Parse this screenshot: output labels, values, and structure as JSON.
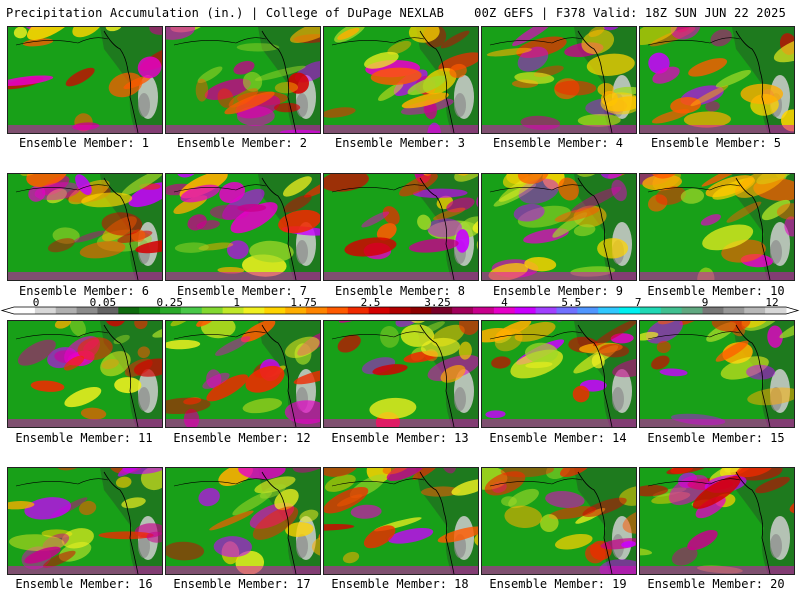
{
  "header": {
    "title": "Precipitation Accumulation (in.) | College of DuPage NEXLAB",
    "run_info": "00Z GEFS | F378 Valid: 18Z SUN JUN 22 2025"
  },
  "members": [
    "Ensemble Member: 1",
    "Ensemble Member: 2",
    "Ensemble Member: 3",
    "Ensemble Member: 4",
    "Ensemble Member: 5",
    "Ensemble Member: 6",
    "Ensemble Member: 7",
    "Ensemble Member: 8",
    "Ensemble Member: 9",
    "Ensemble Member: 10",
    "Ensemble Member: 11",
    "Ensemble Member: 12",
    "Ensemble Member: 13",
    "Ensemble Member: 14",
    "Ensemble Member: 15",
    "Ensemble Member: 16",
    "Ensemble Member: 17",
    "Ensemble Member: 18",
    "Ensemble Member: 19",
    "Ensemble Member: 20"
  ],
  "legend": {
    "labels": [
      "0",
      "0.05",
      "0.25",
      "1",
      "1.75",
      "2.5",
      "3.25",
      "4",
      "5.5",
      "7",
      "9",
      "12"
    ],
    "colors": [
      "#ffffff",
      "#d8d8d8",
      "#b0b0b0",
      "#8c8c8c",
      "#646464",
      "#0e6a0e",
      "#148c14",
      "#2aaa2a",
      "#48c848",
      "#82d830",
      "#c0e828",
      "#f0f020",
      "#ffd400",
      "#ffae00",
      "#ff8400",
      "#ff5a00",
      "#f02a00",
      "#d40000",
      "#b00000",
      "#8c0000",
      "#780028",
      "#a0005a",
      "#c8008c",
      "#e600c8",
      "#c800ff",
      "#a040ff",
      "#7070ff",
      "#5096ff",
      "#30c8ff",
      "#00f0f0",
      "#20d8b4",
      "#40c090",
      "#60a880",
      "#787878",
      "#989898",
      "#b8b8b8",
      "#d8d8d8"
    ]
  },
  "map_colors": {
    "ocean_base": "#18a018",
    "land_base": "#1e7a1e",
    "coast": "#000000"
  }
}
